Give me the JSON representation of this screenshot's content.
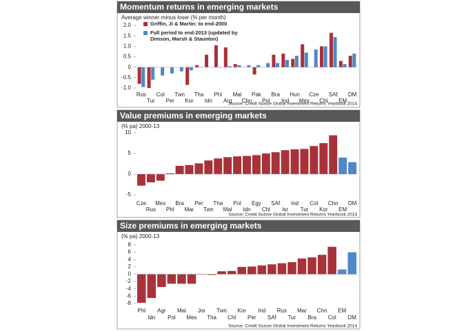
{
  "chart_data": [
    {
      "type": "grouped_bar",
      "title": "Momentum returns in emerging markets",
      "y_label": "Average winner minus loser (% per month)",
      "source": "Source: Credit Suisse Global Investment Returns Yearbook 2014",
      "categories": [
        "Rus",
        "Tur",
        "Col",
        "Per",
        "Twn",
        "Kor",
        "Tha",
        "Idn",
        "Phl",
        "Arg",
        "Mal",
        "Chn",
        "Pak",
        "Pol",
        "Bra",
        "Ind",
        "Hun",
        "Mex",
        "Cze",
        "Chl",
        "SAf",
        "EM",
        "DM"
      ],
      "series": [
        {
          "name": "Griffin, Ji & Martin: to end-2000",
          "color": "#a8323a",
          "values": [
            -0.8,
            -1.0,
            null,
            null,
            null,
            -0.85,
            0.1,
            0.6,
            1.05,
            0.95,
            0.15,
            null,
            -0.35,
            null,
            0.6,
            0.65,
            0.4,
            1.1,
            null,
            1.0,
            1.65,
            0.3,
            0.55
          ]
        },
        {
          "name": "Full period to end-2013 (updated by Dimson, Marsh & Staunton)",
          "color": "#4f88c6",
          "values": [
            -0.95,
            -0.6,
            -0.4,
            -0.3,
            -0.2,
            -0.15,
            0.0,
            null,
            0.0,
            0.05,
            0.1,
            0.1,
            0.1,
            0.2,
            0.2,
            0.35,
            0.55,
            0.7,
            0.85,
            1.0,
            1.45,
            0.15,
            0.65
          ]
        }
      ],
      "ylim": [
        -1.1,
        2.1
      ],
      "yticks": [
        {
          "value": 2,
          "label": "2.0"
        },
        1.5,
        {
          "value": 1,
          "label": "1.0"
        },
        0.5,
        0,
        -0.5,
        {
          "value": -1,
          "label": "-1.0"
        }
      ]
    },
    {
      "type": "bar",
      "title": "Value premiums in emerging markets",
      "y_label": "(% pa) 2000-13",
      "source": "Source: Credit Suisse Global Investment Returns Yearbook 2014",
      "categories": [
        "Cze",
        "Rus",
        "Mex",
        "Phl",
        "Bra",
        "Mar",
        "Per",
        "Twn",
        "Tha",
        "Mal",
        "Pol",
        "Idn",
        "Egy",
        "Chl",
        "SAf",
        "Isr",
        "Ind",
        "Tur",
        "Col",
        "Kor",
        "Chn",
        "EM",
        "DM"
      ],
      "values": [
        -2.8,
        -2.0,
        -1.6,
        0.2,
        2.0,
        2.2,
        2.6,
        3.3,
        3.8,
        4.1,
        4.3,
        4.4,
        4.6,
        5.0,
        5.3,
        5.8,
        6.0,
        6.1,
        6.8,
        7.5,
        9.4,
        4.0,
        2.9
      ],
      "colors": [
        "#a8323a",
        "#a8323a",
        "#a8323a",
        "#a8323a",
        "#a8323a",
        "#a8323a",
        "#a8323a",
        "#a8323a",
        "#a8323a",
        "#a8323a",
        "#a8323a",
        "#a8323a",
        "#a8323a",
        "#a8323a",
        "#a8323a",
        "#a8323a",
        "#a8323a",
        "#a8323a",
        "#a8323a",
        "#a8323a",
        "#a8323a",
        "#4f88c6",
        "#4f88c6"
      ],
      "ylim": [
        -5.5,
        10.5
      ],
      "yticks": [
        10,
        5,
        0,
        -5
      ]
    },
    {
      "type": "bar",
      "title": "Size premiums in emerging markets",
      "y_label": "(% pa) 2000-13",
      "source": "Source: Credit Suisse Global Investment Returns Yearbook 2014",
      "categories": [
        "Phl",
        "Idn",
        "Agr",
        "Pol",
        "Mal",
        "Mex",
        "Jor",
        "Tha",
        "Twn",
        "Chl",
        "Kor",
        "Per",
        "Ind",
        "SAf",
        "Rus",
        "Tur",
        "Mar",
        "Bra",
        "Chn",
        "Col",
        "EM",
        "DM"
      ],
      "values": [
        -7.8,
        -6.5,
        -3.5,
        -2.6,
        -2.6,
        -2.6,
        0,
        -0.2,
        0.8,
        0.9,
        2.0,
        2.1,
        2.4,
        2.7,
        3.0,
        3.3,
        4.3,
        4.6,
        5.3,
        7.5,
        1.3,
        6.0
      ],
      "colors": [
        "#a8323a",
        "#a8323a",
        "#a8323a",
        "#a8323a",
        "#a8323a",
        "#a8323a",
        "#a8323a",
        "#a8323a",
        "#a8323a",
        "#a8323a",
        "#a8323a",
        "#a8323a",
        "#a8323a",
        "#a8323a",
        "#a8323a",
        "#a8323a",
        "#a8323a",
        "#a8323a",
        "#a8323a",
        "#a8323a",
        "#4f88c6",
        "#4f88c6"
      ],
      "ylim": [
        -8.5,
        8.5
      ],
      "yticks": [
        8,
        6,
        4,
        2,
        0,
        -2,
        -4,
        -6,
        -8
      ]
    }
  ]
}
